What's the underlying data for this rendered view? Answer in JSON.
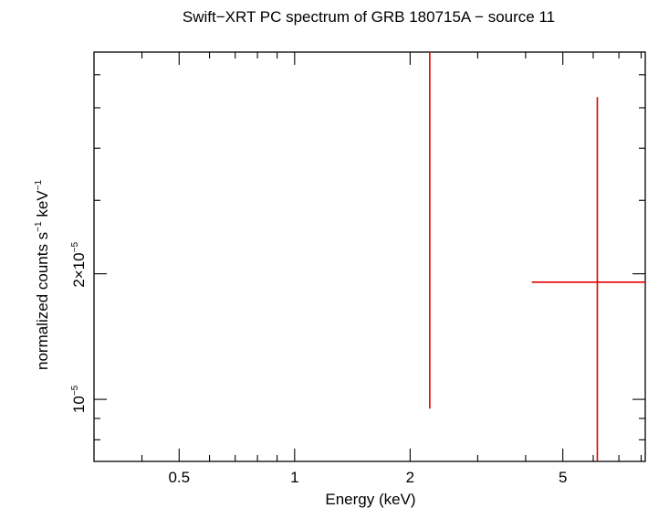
{
  "chart_data": {
    "type": "scatter",
    "title": "Swift−XRT PC spectrum of GRB 180715A − source 11",
    "xlabel": "Energy (keV)",
    "ylabel_parts": {
      "a": "normalized counts s",
      "b": "−1",
      "c": " keV",
      "d": "−1"
    },
    "x_scale": "log",
    "y_scale": "log",
    "xlim": [
      0.3,
      8.2
    ],
    "ylim": [
      7.1e-06,
      6.8e-05
    ],
    "x_ticks_major": [
      {
        "value": 0.5,
        "label": "0.5"
      },
      {
        "value": 1,
        "label": "1"
      },
      {
        "value": 2,
        "label": "2"
      },
      {
        "value": 5,
        "label": "5"
      }
    ],
    "x_ticks_minor": [
      0.4,
      0.6,
      0.7,
      0.8,
      0.9,
      3,
      4,
      6,
      7,
      8
    ],
    "y_ticks_major": [
      {
        "value": 1e-05,
        "mant": "10",
        "exp": "−5"
      },
      {
        "value": 2e-05,
        "mant": "2×10",
        "exp": "−5"
      }
    ],
    "y_ticks_minor": [
      8e-06,
      9e-06,
      3e-05,
      4e-05,
      5e-05,
      6e-05
    ],
    "series": [
      {
        "color": "#e00000",
        "points": [
          {
            "x": 2.25,
            "xerr": [
              2.25,
              2.25
            ],
            "yerr": [
              9.5e-06,
              6.8e-05
            ]
          },
          {
            "x": 6.15,
            "y": 1.91e-05,
            "xerr": [
              4.15,
              8.2
            ],
            "yerr": [
              7.1e-06,
              5.3e-05
            ]
          }
        ]
      }
    ]
  }
}
